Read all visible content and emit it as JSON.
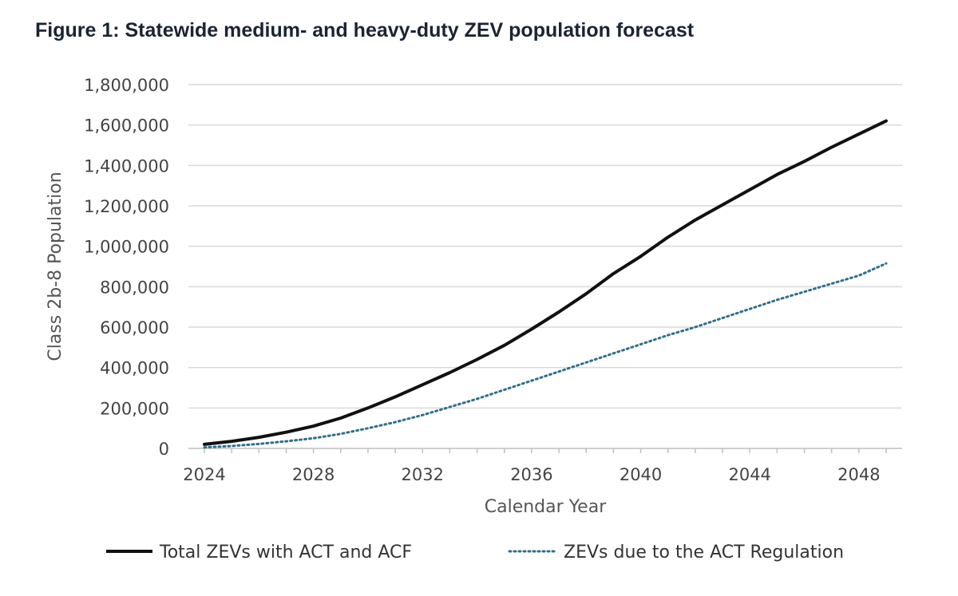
{
  "chart_data": {
    "type": "line",
    "title": "Figure 1: Statewide medium- and heavy-duty ZEV population forecast",
    "xlabel": "Calendar Year",
    "ylabel": "Class 2b-8 Population",
    "xlim": [
      2024,
      2049
    ],
    "ylim": [
      0,
      1800000
    ],
    "x_ticks": [
      2024,
      2028,
      2032,
      2036,
      2040,
      2044,
      2048
    ],
    "x_tick_labels": [
      "2024",
      "2028",
      "2032",
      "2036",
      "2040",
      "2044",
      "2048"
    ],
    "y_ticks": [
      0,
      200000,
      400000,
      600000,
      800000,
      1000000,
      1200000,
      1400000,
      1600000,
      1800000
    ],
    "y_tick_labels": [
      "0",
      "200,000",
      "400,000",
      "600,000",
      "800,000",
      "1,000,000",
      "1,200,000",
      "1,400,000",
      "1,600,000",
      "1,800,000"
    ],
    "grid": true,
    "legend_position": "bottom",
    "x": [
      2024,
      2025,
      2026,
      2027,
      2028,
      2029,
      2030,
      2031,
      2032,
      2033,
      2034,
      2035,
      2036,
      2037,
      2038,
      2039,
      2040,
      2041,
      2042,
      2043,
      2044,
      2045,
      2046,
      2047,
      2048,
      2049
    ],
    "series": [
      {
        "name": "Total ZEVs with ACT and ACF",
        "color": "#111111",
        "style": "solid",
        "values": [
          20000,
          35000,
          55000,
          80000,
          110000,
          150000,
          200000,
          255000,
          315000,
          375000,
          440000,
          510000,
          590000,
          675000,
          765000,
          865000,
          950000,
          1045000,
          1130000,
          1205000,
          1280000,
          1355000,
          1420000,
          1490000,
          1555000,
          1620000
        ]
      },
      {
        "name": "ZEVs due to the ACT Regulation",
        "color": "#2e6f8e",
        "style": "dotted",
        "values": [
          5000,
          12000,
          22000,
          35000,
          50000,
          72000,
          100000,
          130000,
          165000,
          205000,
          245000,
          290000,
          335000,
          380000,
          425000,
          470000,
          515000,
          560000,
          600000,
          645000,
          690000,
          735000,
          775000,
          815000,
          855000,
          915000
        ]
      }
    ]
  }
}
